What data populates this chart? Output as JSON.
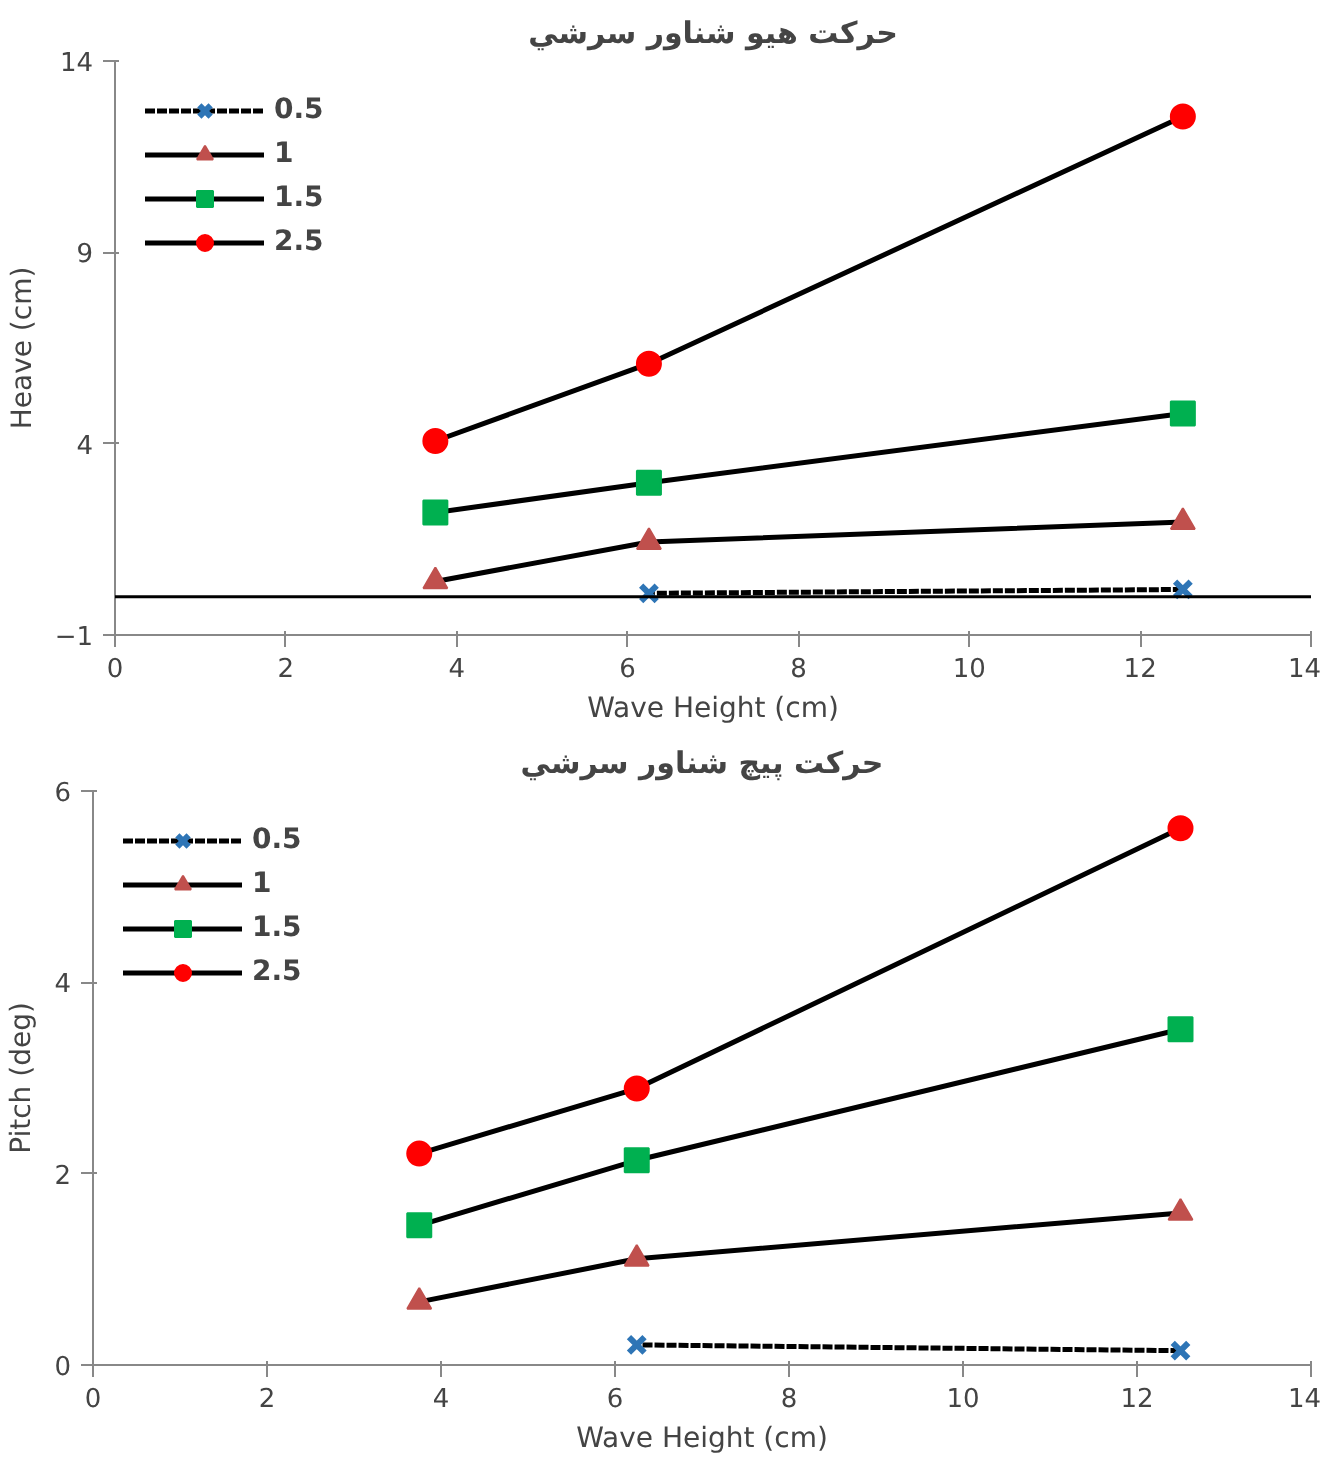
{
  "chart_data": [
    {
      "type": "line",
      "title": "حركت هيو شناور سرشي",
      "xlabel": "Wave Height (cm)",
      "ylabel": "Heave (cm)",
      "x": [
        3.75,
        6.25,
        12.5
      ],
      "xlim": [
        0,
        14
      ],
      "xticks": [
        0,
        2,
        4,
        6,
        8,
        10,
        12,
        14
      ],
      "ylim": [
        -1,
        14
      ],
      "yticks": [
        -1,
        4,
        9,
        14
      ],
      "grid": false,
      "legend": "top left",
      "ref_lines": [
        {
          "axis": "y",
          "value": 0,
          "color": "#000000"
        }
      ],
      "series": [
        {
          "name": "0.5",
          "color": "#2e75b6",
          "marker": "cross",
          "line_style": "dashed",
          "values": [
            null,
            0.09,
            0.19
          ]
        },
        {
          "name": "1",
          "color": "#c0504d",
          "marker": "triangle",
          "line_style": "solid",
          "values": [
            0.4,
            1.43,
            1.95
          ]
        },
        {
          "name": "1.5",
          "color": "#00b050",
          "marker": "square",
          "line_style": "solid",
          "values": [
            2.2,
            2.98,
            4.79
          ]
        },
        {
          "name": "2.5",
          "color": "#ff0000",
          "marker": "circle",
          "line_style": "solid",
          "values": [
            4.07,
            6.09,
            12.55
          ]
        }
      ]
    },
    {
      "type": "line",
      "title": "حركت پيچ شناور سرشي",
      "xlabel": "Wave Height (cm)",
      "ylabel": "Pitch (deg)",
      "x": [
        3.75,
        6.25,
        12.5
      ],
      "xlim": [
        0,
        14
      ],
      "xticks": [
        0,
        2,
        4,
        6,
        8,
        10,
        12,
        14
      ],
      "ylim": [
        0,
        6
      ],
      "yticks": [
        0,
        2,
        4,
        6
      ],
      "grid": false,
      "legend": "top left",
      "series": [
        {
          "name": "0.5",
          "color": "#2e75b6",
          "marker": "cross",
          "line_style": "dashed",
          "values": [
            null,
            0.21,
            0.15
          ]
        },
        {
          "name": "1",
          "color": "#c0504d",
          "marker": "triangle",
          "line_style": "solid",
          "values": [
            0.66,
            1.11,
            1.59
          ]
        },
        {
          "name": "1.5",
          "color": "#00b050",
          "marker": "square",
          "line_style": "solid",
          "values": [
            1.46,
            2.14,
            3.51
          ]
        },
        {
          "name": "2.5",
          "color": "#ff0000",
          "marker": "circle",
          "line_style": "solid",
          "values": [
            2.21,
            2.89,
            5.61
          ]
        }
      ]
    }
  ]
}
